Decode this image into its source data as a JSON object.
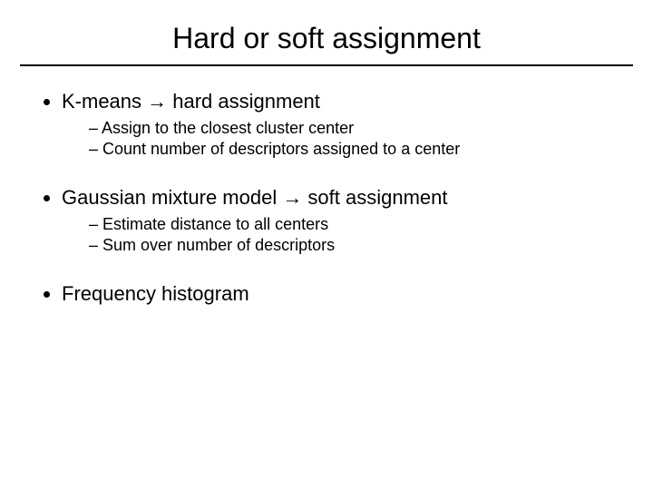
{
  "title": "Hard or soft assignment",
  "bullets": [
    {
      "text": "K-means → hard assignment",
      "sub": [
        "Assign to the closest cluster center",
        "Count number of descriptors assigned to a center"
      ]
    },
    {
      "text": "Gaussian mixture model → soft assignment",
      "sub": [
        "Estimate distance to all centers",
        "Sum over number of descriptors"
      ]
    },
    {
      "text": "Frequency histogram",
      "sub": []
    }
  ],
  "colors": {
    "background": "#ffffff",
    "text": "#000000",
    "rule": "#000000"
  },
  "typography": {
    "title_fontsize": 32,
    "bullet_fontsize": 22,
    "subbullet_fontsize": 18,
    "font_family": "Arial"
  }
}
